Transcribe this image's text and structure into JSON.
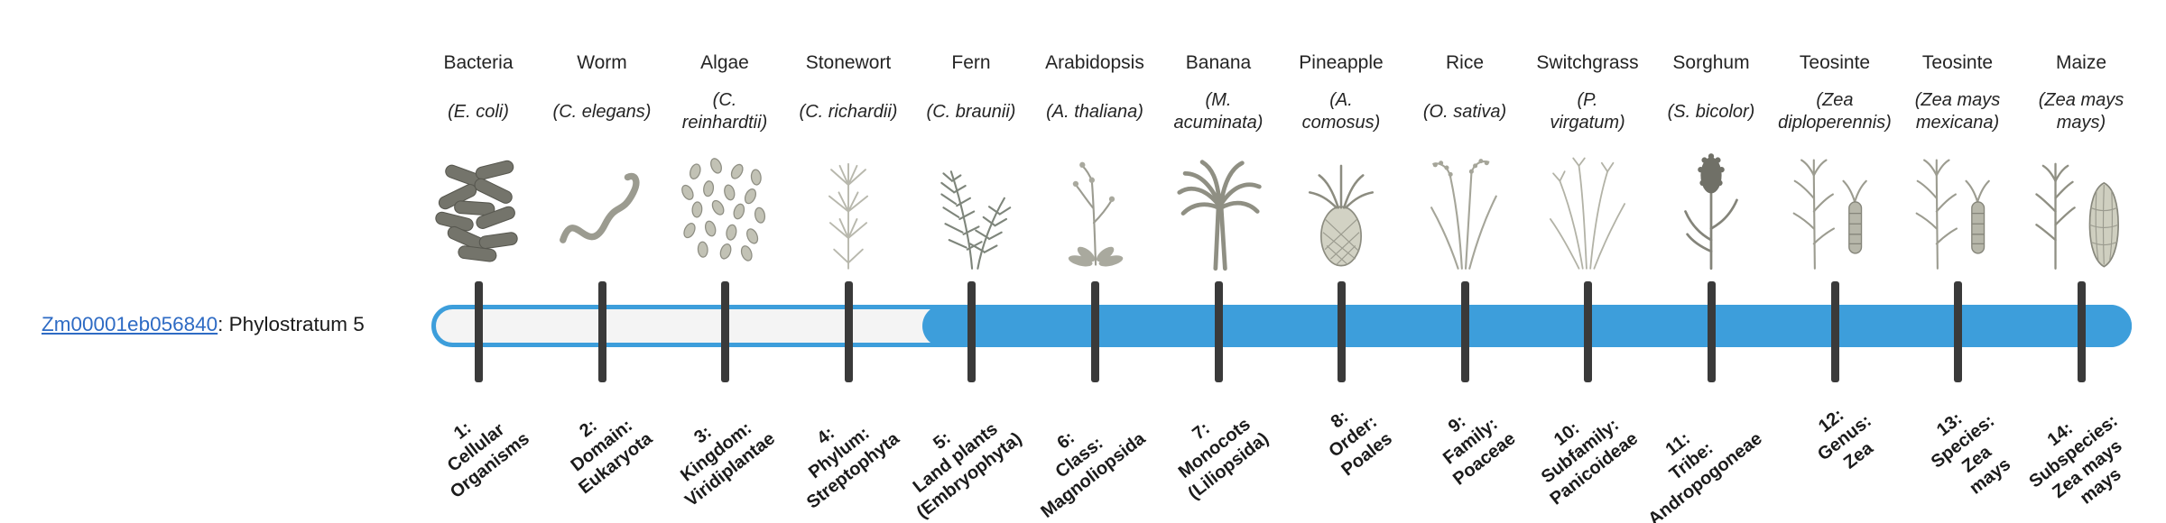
{
  "gene": {
    "id": "Zm00001eb056840",
    "suffix": ": Phylostratum 5"
  },
  "colors": {
    "bar_blue": "#3d9edb",
    "track_empty": "#f4f4f4",
    "tick": "#3a3a3a",
    "link_blue": "#2e6bc4"
  },
  "bar": {
    "fill_start_stratum": 5,
    "total_strata": 14
  },
  "columns": [
    {
      "stratum": 1,
      "common_name": "Bacteria",
      "scientific_name": [
        "(E. coli)"
      ],
      "icon": "bacteria-icon",
      "stratum_label_lines": [
        "1:",
        "Cellular",
        "Organisms"
      ]
    },
    {
      "stratum": 2,
      "common_name": "Worm",
      "scientific_name": [
        "(C. elegans)"
      ],
      "icon": "worm-icon",
      "stratum_label_lines": [
        "2:",
        "Domain:",
        "Eukaryota"
      ]
    },
    {
      "stratum": 3,
      "common_name": "Algae",
      "scientific_name": [
        "(C.",
        "reinhardtii)"
      ],
      "icon": "algae-icon",
      "stratum_label_lines": [
        "3:",
        "Kingdom:",
        "Viridiplantae"
      ]
    },
    {
      "stratum": 4,
      "common_name": "Stonewort",
      "scientific_name": [
        "(C. richardii)"
      ],
      "icon": "stonewort-icon",
      "stratum_label_lines": [
        "4:",
        "Phylum:",
        "Streptophyta"
      ]
    },
    {
      "stratum": 5,
      "common_name": "Fern",
      "scientific_name": [
        "(C. braunii)"
      ],
      "icon": "fern-icon",
      "stratum_label_lines": [
        "5:",
        "Land plants",
        "(Embryophyta)"
      ]
    },
    {
      "stratum": 6,
      "common_name": "Arabidopsis",
      "scientific_name": [
        "(A. thaliana)"
      ],
      "icon": "arabidopsis-icon",
      "stratum_label_lines": [
        "6:",
        "Class:",
        "Magnoliopsida"
      ]
    },
    {
      "stratum": 7,
      "common_name": "Banana",
      "scientific_name": [
        "(M.",
        "acuminata)"
      ],
      "icon": "banana-icon",
      "stratum_label_lines": [
        "7:",
        "Monocots",
        "(Liliopsida)"
      ]
    },
    {
      "stratum": 8,
      "common_name": "Pineapple",
      "scientific_name": [
        "(A.",
        "comosus)"
      ],
      "icon": "pineapple-icon",
      "stratum_label_lines": [
        "8:",
        "Order:",
        "Poales"
      ]
    },
    {
      "stratum": 9,
      "common_name": "Rice",
      "scientific_name": [
        "(O. sativa)"
      ],
      "icon": "rice-icon",
      "stratum_label_lines": [
        "9:",
        "Family:",
        "Poaceae"
      ]
    },
    {
      "stratum": 10,
      "common_name": "Switchgrass",
      "scientific_name": [
        "(P.",
        "virgatum)"
      ],
      "icon": "switchgrass-icon",
      "stratum_label_lines": [
        "10:",
        "Subfamily:",
        "Panicoideae"
      ]
    },
    {
      "stratum": 11,
      "common_name": "Sorghum",
      "scientific_name": [
        "(S. bicolor)"
      ],
      "icon": "sorghum-icon",
      "stratum_label_lines": [
        "11:",
        "Tribe:",
        "Andropogoneae"
      ]
    },
    {
      "stratum": 12,
      "common_name": "Teosinte",
      "scientific_name": [
        "(Zea",
        "diploperennis)"
      ],
      "icon": "teosinte-icon",
      "stratum_label_lines": [
        "12:",
        "Genus:",
        "Zea"
      ]
    },
    {
      "stratum": 13,
      "common_name": "Teosinte",
      "scientific_name": [
        "(Zea mays",
        "mexicana)"
      ],
      "icon": "teosinte-icon",
      "stratum_label_lines": [
        "13:",
        "Species:",
        "Zea",
        "mays"
      ]
    },
    {
      "stratum": 14,
      "common_name": "Maize",
      "scientific_name": [
        "(Zea mays",
        "mays)"
      ],
      "icon": "maize-icon",
      "stratum_label_lines": [
        "14:",
        "Subspecies:",
        "Zea mays",
        "mays"
      ]
    }
  ]
}
